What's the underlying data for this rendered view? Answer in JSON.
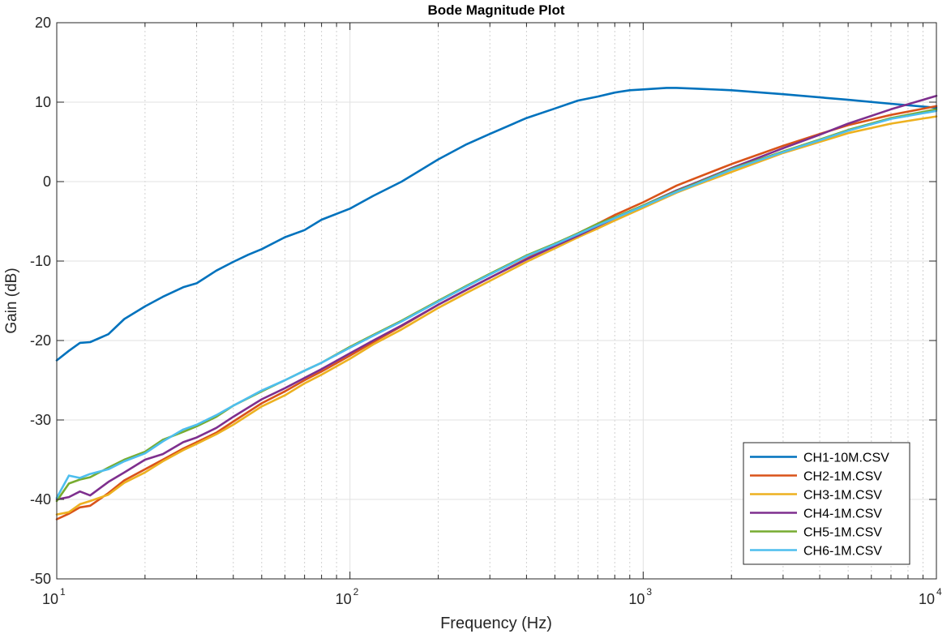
{
  "chart_data": {
    "type": "line",
    "title": "Bode Magnitude Plot",
    "xlabel": "Frequency (Hz)",
    "ylabel": "Gain (dB)",
    "xscale": "log",
    "xlim": [
      10,
      10000
    ],
    "ylim": [
      -50,
      20
    ],
    "xticks": [
      {
        "value": 10,
        "base": "10",
        "exp": "1"
      },
      {
        "value": 100,
        "base": "10",
        "exp": "2"
      },
      {
        "value": 1000,
        "base": "10",
        "exp": "3"
      },
      {
        "value": 10000,
        "base": "10",
        "exp": "4"
      }
    ],
    "yticks": [
      20,
      10,
      0,
      -10,
      -20,
      -30,
      -40,
      -50
    ],
    "yticklabels": [
      "20",
      "10",
      "0",
      "-10",
      "-20",
      "-30",
      "-40",
      "-50"
    ],
    "grid": true,
    "minor_grid": true,
    "legend_position": "bottom-right",
    "series": [
      {
        "name": "CH1-10M.CSV",
        "color": "#0072BD",
        "x": [
          10,
          11,
          12,
          13,
          15,
          17,
          20,
          23,
          27,
          30,
          35,
          40,
          45,
          50,
          60,
          70,
          80,
          100,
          120,
          150,
          200,
          250,
          300,
          400,
          500,
          600,
          700,
          800,
          900,
          1000,
          1200,
          1300,
          1500,
          2000,
          3000,
          5000,
          7000,
          10000
        ],
        "y": [
          -22.5,
          -21.3,
          -20.3,
          -20.2,
          -19.2,
          -17.3,
          -15.7,
          -14.5,
          -13.3,
          -12.8,
          -11.2,
          -10.1,
          -9.2,
          -8.5,
          -7.0,
          -6.1,
          -4.8,
          -3.4,
          -1.8,
          0.0,
          2.8,
          4.7,
          6.0,
          8.0,
          9.2,
          10.2,
          10.7,
          11.2,
          11.5,
          11.6,
          11.8,
          11.8,
          11.7,
          11.5,
          11.0,
          10.3,
          9.8,
          9.3
        ]
      },
      {
        "name": "CH2-1M.CSV",
        "color": "#D95319",
        "x": [
          10,
          11,
          12,
          13,
          15,
          17,
          20,
          23,
          27,
          30,
          35,
          40,
          50,
          60,
          70,
          80,
          100,
          120,
          150,
          200,
          250,
          300,
          400,
          500,
          600,
          700,
          800,
          1000,
          1300,
          1500,
          2000,
          3000,
          4000,
          5000,
          7000,
          10000
        ],
        "y": [
          -42.5,
          -41.8,
          -41.0,
          -40.8,
          -39.2,
          -37.6,
          -36.2,
          -35.0,
          -33.6,
          -32.8,
          -31.6,
          -30.2,
          -27.9,
          -26.4,
          -25.0,
          -23.9,
          -21.9,
          -20.2,
          -18.2,
          -15.5,
          -13.6,
          -12.1,
          -9.7,
          -7.9,
          -6.5,
          -5.3,
          -4.2,
          -2.6,
          -0.5,
          0.4,
          2.2,
          4.5,
          6.0,
          7.1,
          8.4,
          9.5
        ]
      },
      {
        "name": "CH3-1M.CSV",
        "color": "#EDB120",
        "x": [
          10,
          11,
          12,
          13,
          15,
          17,
          20,
          23,
          27,
          30,
          35,
          40,
          50,
          60,
          70,
          80,
          100,
          120,
          150,
          200,
          250,
          300,
          400,
          500,
          600,
          700,
          800,
          1000,
          1300,
          1500,
          2000,
          3000,
          4000,
          5000,
          7000,
          10000
        ],
        "y": [
          -41.9,
          -41.6,
          -40.6,
          -40.2,
          -39.4,
          -37.9,
          -36.6,
          -35.2,
          -33.8,
          -33.0,
          -31.8,
          -30.6,
          -28.3,
          -26.9,
          -25.4,
          -24.3,
          -22.3,
          -20.5,
          -18.6,
          -15.9,
          -14.0,
          -12.5,
          -10.1,
          -8.4,
          -7.0,
          -5.9,
          -4.9,
          -3.3,
          -1.4,
          -0.5,
          1.2,
          3.6,
          5.0,
          6.1,
          7.3,
          8.2
        ]
      },
      {
        "name": "CH4-1M.CSV",
        "color": "#7E2F8E",
        "x": [
          10,
          11,
          12,
          13,
          15,
          17,
          20,
          23,
          27,
          30,
          35,
          40,
          50,
          60,
          70,
          80,
          100,
          120,
          150,
          200,
          250,
          300,
          400,
          500,
          600,
          700,
          800,
          1000,
          1300,
          1500,
          2000,
          3000,
          4000,
          5000,
          7000,
          10000
        ],
        "y": [
          -40.0,
          -39.7,
          -39.0,
          -39.5,
          -37.8,
          -36.6,
          -35.0,
          -34.3,
          -32.8,
          -32.2,
          -31.0,
          -29.6,
          -27.4,
          -26.0,
          -24.7,
          -23.6,
          -21.6,
          -20.0,
          -18.1,
          -15.5,
          -13.6,
          -12.1,
          -9.8,
          -8.1,
          -6.8,
          -5.6,
          -4.6,
          -3.0,
          -1.1,
          -0.2,
          1.7,
          4.2,
          5.9,
          7.3,
          9.1,
          10.8
        ]
      },
      {
        "name": "CH5-1M.CSV",
        "color": "#77AC30",
        "x": [
          10,
          11,
          12,
          13,
          15,
          17,
          20,
          23,
          27,
          30,
          35,
          40,
          50,
          60,
          70,
          80,
          100,
          120,
          150,
          200,
          250,
          300,
          400,
          500,
          600,
          700,
          800,
          1000,
          1300,
          1500,
          2000,
          3000,
          4000,
          5000,
          7000,
          10000
        ],
        "y": [
          -40.2,
          -38.0,
          -37.5,
          -37.2,
          -36.0,
          -35.0,
          -34.0,
          -32.5,
          -31.5,
          -30.8,
          -29.6,
          -28.2,
          -26.4,
          -25.0,
          -23.8,
          -22.8,
          -20.8,
          -19.3,
          -17.5,
          -15.0,
          -13.1,
          -11.6,
          -9.3,
          -7.8,
          -6.5,
          -5.3,
          -4.5,
          -3.0,
          -1.2,
          -0.3,
          1.6,
          3.8,
          5.3,
          6.5,
          8.0,
          9.1
        ]
      },
      {
        "name": "CH6-1M.CSV",
        "color": "#4DBEEE",
        "x": [
          10,
          11,
          12,
          13,
          15,
          17,
          20,
          23,
          27,
          30,
          35,
          40,
          50,
          60,
          70,
          80,
          100,
          120,
          150,
          200,
          250,
          300,
          400,
          500,
          600,
          700,
          800,
          1000,
          1300,
          1500,
          2000,
          3000,
          4000,
          5000,
          7000,
          10000
        ],
        "y": [
          -39.8,
          -37.0,
          -37.3,
          -36.8,
          -36.2,
          -35.2,
          -34.2,
          -32.7,
          -31.2,
          -30.6,
          -29.4,
          -28.2,
          -26.3,
          -25.0,
          -23.8,
          -22.8,
          -20.9,
          -19.4,
          -17.6,
          -15.1,
          -13.2,
          -11.7,
          -9.4,
          -7.9,
          -6.6,
          -5.5,
          -4.6,
          -3.1,
          -1.3,
          -0.4,
          1.5,
          3.7,
          5.2,
          6.4,
          7.9,
          8.9
        ]
      }
    ]
  }
}
